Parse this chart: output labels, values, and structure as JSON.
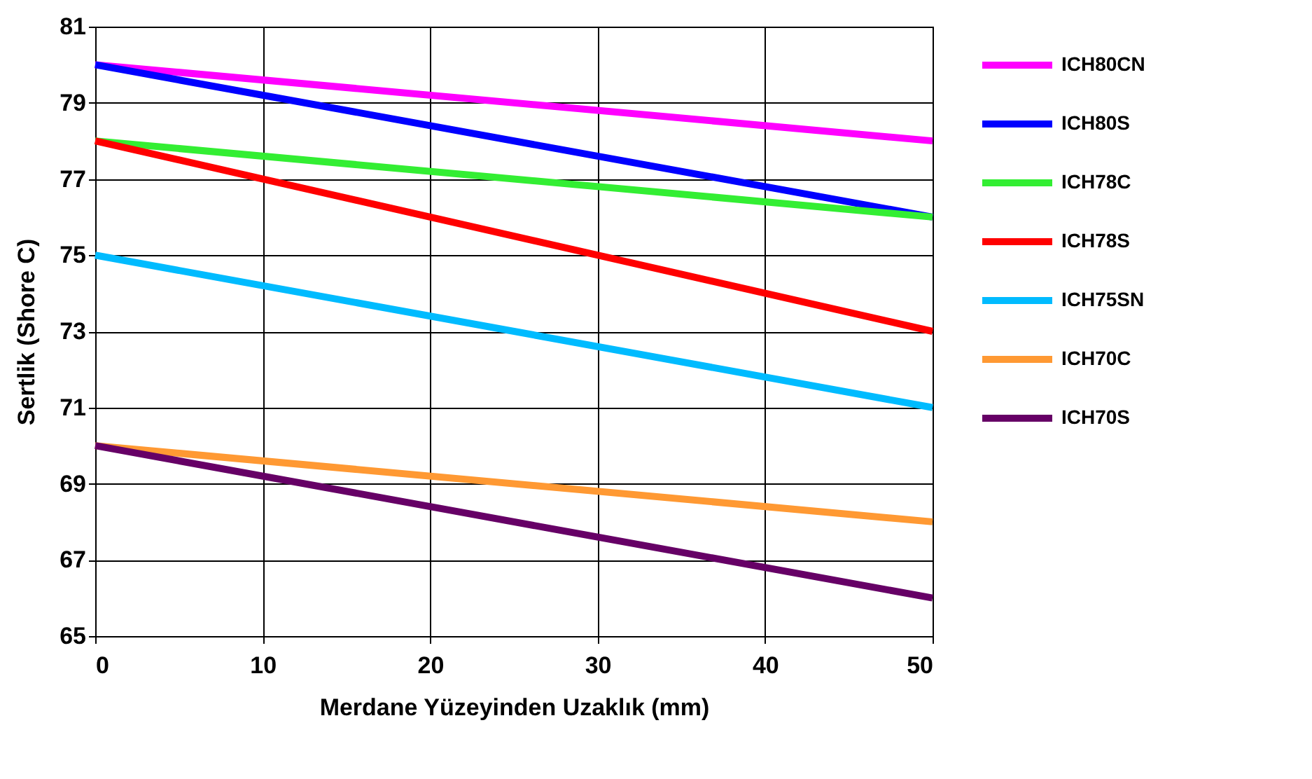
{
  "chart_data": {
    "type": "line",
    "xlabel": "Merdane Yüzeyinden Uzaklık (mm)",
    "ylabel": "Sertlik (Shore C)",
    "xlim": [
      0,
      50
    ],
    "xticks": [
      0,
      10,
      20,
      30,
      40,
      50
    ],
    "ylim": [
      65,
      81
    ],
    "yticks": [
      65,
      67,
      69,
      71,
      73,
      75,
      77,
      79,
      81
    ],
    "grid": true,
    "legend": "right",
    "marker": "none",
    "line_style": "solid",
    "x": [
      0,
      50
    ],
    "series": [
      {
        "name": "ICH80CN",
        "color": "#ff00ff",
        "values": [
          80,
          78
        ]
      },
      {
        "name": "ICH80S",
        "color": "#0000ff",
        "values": [
          80,
          76
        ]
      },
      {
        "name": "ICH78C",
        "color": "#33ee33",
        "values": [
          78,
          76
        ]
      },
      {
        "name": "ICH78S",
        "color": "#ff0000",
        "values": [
          78,
          73
        ]
      },
      {
        "name": "ICH75SN",
        "color": "#00bbff",
        "values": [
          75,
          71
        ]
      },
      {
        "name": "ICH70C",
        "color": "#ff9933",
        "values": [
          70,
          68
        ]
      },
      {
        "name": "ICH70S",
        "color": "#660066",
        "values": [
          70,
          66
        ]
      }
    ]
  }
}
